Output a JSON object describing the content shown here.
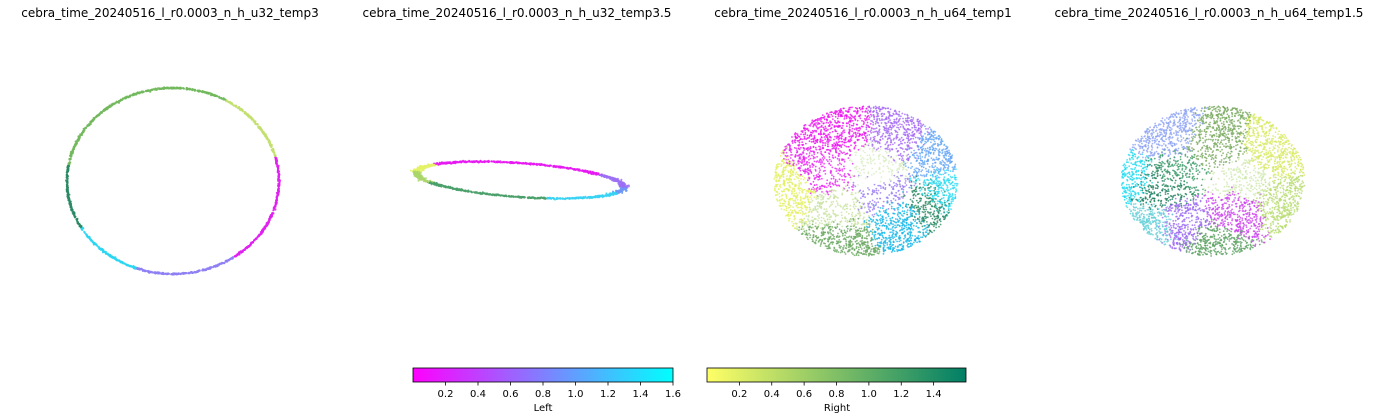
{
  "chart_data": {
    "type": "scatter",
    "panels": [
      {
        "title": "cebra_time_20240516_l_r0.0003_n_h_u32_temp3",
        "shape": "ring",
        "ring": {
          "angle_color_stops": [
            {
              "from": 0,
              "to": 55,
              "color": "#e020f0"
            },
            {
              "from": 55,
              "to": 110,
              "color": "#8e80f4"
            },
            {
              "from": 110,
              "to": 150,
              "color": "#2ad6f2"
            },
            {
              "from": 150,
              "to": 190,
              "color": "#2a8a64"
            },
            {
              "from": 190,
              "to": 300,
              "color": "#72b85c"
            },
            {
              "from": 300,
              "to": 345,
              "color": "#c2e06e"
            },
            {
              "from": 345,
              "to": 360,
              "color": "#e020f0"
            }
          ]
        }
      },
      {
        "title": "cebra_time_20240516_l_r0.0003_n_h_u32_temp3.5",
        "shape": "tilted-ring",
        "ring": {
          "angle_color_stops": [
            {
              "from": 0,
              "to": 20,
              "color": "#6e96f6"
            },
            {
              "from": 20,
              "to": 75,
              "color": "#38d2f4"
            },
            {
              "from": 75,
              "to": 150,
              "color": "#4aa06a"
            },
            {
              "from": 150,
              "to": 185,
              "color": "#aad66a"
            },
            {
              "from": 185,
              "to": 215,
              "color": "#e4f266"
            },
            {
              "from": 215,
              "to": 320,
              "color": "#e61af2"
            },
            {
              "from": 320,
              "to": 360,
              "color": "#9c6ef4"
            }
          ]
        }
      },
      {
        "title": "cebra_time_20240516_l_r0.0003_n_h_u64_temp1",
        "shape": "disc",
        "regions": [
          {
            "color": "#ee14f0",
            "angle": 245,
            "radius": 0.7
          },
          {
            "color": "#e828f2",
            "angle": 195,
            "radius": 0.45
          },
          {
            "color": "#a468f4",
            "angle": 300,
            "radius": 0.65
          },
          {
            "color": "#66a6f6",
            "angle": 335,
            "radius": 0.8
          },
          {
            "color": "#2adcf4",
            "angle": 10,
            "radius": 0.85
          },
          {
            "color": "#18b8e8",
            "angle": 55,
            "radius": 0.6
          },
          {
            "color": "#2a8a64",
            "angle": 25,
            "radius": 0.75
          },
          {
            "color": "#6aa860",
            "angle": 110,
            "radius": 0.85
          },
          {
            "color": "#c8e2a0",
            "angle": 130,
            "radius": 0.5
          },
          {
            "color": "#e4f060",
            "angle": 170,
            "radius": 0.85
          },
          {
            "color": "#9a7cf4",
            "angle": 40,
            "radius": 0.25
          },
          {
            "color": "#d8ecc0",
            "angle": 300,
            "radius": 0.25
          }
        ]
      },
      {
        "title": "cebra_time_20240516_l_r0.0003_n_h_u64_temp1.5",
        "shape": "disc",
        "regions": [
          {
            "color": "#d8ea62",
            "angle": 330,
            "radius": 0.8
          },
          {
            "color": "#b8dc70",
            "angle": 20,
            "radius": 0.85
          },
          {
            "color": "#8ea4f4",
            "angle": 230,
            "radius": 0.75
          },
          {
            "color": "#20dcf2",
            "angle": 180,
            "radius": 0.88
          },
          {
            "color": "#1a7a5a",
            "angle": 170,
            "radius": 0.6
          },
          {
            "color": "#3a9a68",
            "angle": 200,
            "radius": 0.4
          },
          {
            "color": "#cc40ee",
            "angle": 60,
            "radius": 0.45
          },
          {
            "color": "#5aa060",
            "angle": 90,
            "radius": 0.85
          },
          {
            "color": "#7aaa60",
            "angle": 270,
            "radius": 0.45
          },
          {
            "color": "#9c6cf2",
            "angle": 120,
            "radius": 0.65
          },
          {
            "color": "#d0e8b0",
            "angle": 0,
            "radius": 0.3
          },
          {
            "color": "#66d0d8",
            "angle": 140,
            "radius": 0.85
          }
        ]
      }
    ],
    "colorbars": [
      {
        "label": "Left",
        "cmap": "cool_r",
        "colors": [
          "#ff00ff",
          "#00ffff"
        ],
        "range": [
          0,
          1.6
        ],
        "ticks": [
          "0.2",
          "0.4",
          "0.6",
          "0.8",
          "1.0",
          "1.2",
          "1.4",
          "1.6"
        ],
        "tick_values": [
          0.2,
          0.4,
          0.6,
          0.8,
          1.0,
          1.2,
          1.4,
          1.6
        ]
      },
      {
        "label": "Right",
        "cmap": "summer_r",
        "colors": [
          "#ffff66",
          "#007f66"
        ],
        "range": [
          0,
          1.6
        ],
        "ticks": [
          "0.2",
          "0.4",
          "0.6",
          "0.8",
          "1.0",
          "1.2",
          "1.4"
        ],
        "tick_values": [
          0.2,
          0.4,
          0.6,
          0.8,
          1.0,
          1.2,
          1.4
        ]
      }
    ],
    "axes_visible": false,
    "grid": false
  }
}
